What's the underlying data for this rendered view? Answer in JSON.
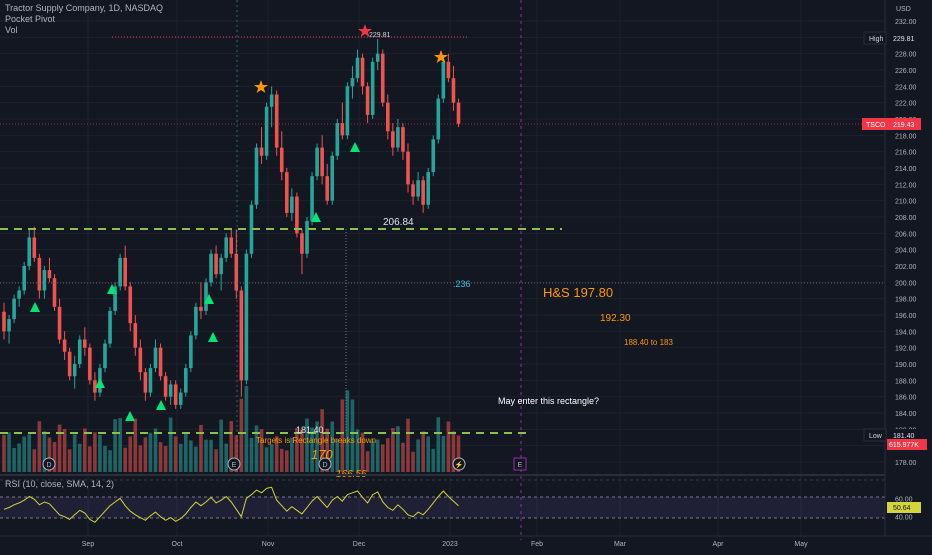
{
  "legend": {
    "title": "Tractor Supply Company, 1D, NASDAQ",
    "indicator_1": "Pocket Pivot",
    "indicator_2": "Vol"
  },
  "price_axis": {
    "currency": "USD",
    "ticks": [
      "232.00",
      "230.00",
      "228.00",
      "226.00",
      "224.00",
      "222.00",
      "220.00",
      "218.00",
      "216.00",
      "214.00",
      "212.00",
      "210.00",
      "208.00",
      "206.00",
      "204.00",
      "202.00",
      "200.00",
      "198.00",
      "196.00",
      "194.00",
      "192.00",
      "190.00",
      "188.00",
      "186.00",
      "184.00",
      "182.00",
      "180.00",
      "178.00"
    ],
    "high_label": "High",
    "high_value": "229.81",
    "ticker_label": "TSCO",
    "ticker_value": "219.43",
    "low_label": "Low",
    "low_value": "181.40",
    "vol_value": "615.977K"
  },
  "rsi_axis": {
    "ticks": [
      "60.00",
      "50.64",
      "40.00"
    ],
    "value": "50.64"
  },
  "rsi_legend": "RSI (10, close, SMA, 14, 2)",
  "time_axis": [
    "Sep",
    "Oct",
    "Nov",
    "Dec",
    "2023",
    "Feb",
    "Mar",
    "Apr",
    "May"
  ],
  "annotations": {
    "peak": "229.81",
    "neckline": "206.84",
    "fib": ".236",
    "hs": "H&S  197.80",
    "t1": "192.30",
    "t2": "188.40 to 183",
    "rect_q": "May enter this rectangle?",
    "low": "181.40",
    "target_text": "Targets is Rectangle breaks down",
    "big_170": "170",
    "cut_number": "166.56"
  },
  "event_badges": [
    "D",
    "E",
    "D",
    "⚡",
    "E"
  ],
  "colors": {
    "up": "#26a69a",
    "down": "#ef5350",
    "neckline": "#8bc34a",
    "ticker_badge": "#f23645",
    "marker": "#00e676",
    "star_orange": "#ff9800",
    "star_red": "#f23645",
    "rsi_line": "#d4d43b",
    "divider_line": "#9c27b0"
  },
  "chart_data": {
    "type": "candlestick",
    "symbol": "TSCO",
    "timeframe": "1D",
    "y_range": [
      177,
      233
    ],
    "levels": {
      "high": 229.81,
      "neckline": 206.84,
      "low": 181.4,
      "last": 219.43
    },
    "targets": {
      "hs": 197.8,
      "t1": 192.3,
      "t2_range": [
        188.4,
        183
      ]
    },
    "candles": [
      [
        196.4,
        197.5,
        193.0,
        194.0
      ],
      [
        194.0,
        196.0,
        192.5,
        195.5
      ],
      [
        195.5,
        198.5,
        195.0,
        198.0
      ],
      [
        198.0,
        199.5,
        197.0,
        199.0
      ],
      [
        199.0,
        202.5,
        198.5,
        202.0
      ],
      [
        202.0,
        206.5,
        201.5,
        205.5
      ],
      [
        205.5,
        206.8,
        202.5,
        203.0
      ],
      [
        203.0,
        203.5,
        198.0,
        199.0
      ],
      [
        199.0,
        202.0,
        198.0,
        201.5
      ],
      [
        201.5,
        203.0,
        200.0,
        200.5
      ],
      [
        200.5,
        201.0,
        196.5,
        197.0
      ],
      [
        197.0,
        198.0,
        192.5,
        193.0
      ],
      [
        193.0,
        194.0,
        190.5,
        191.5
      ],
      [
        191.5,
        192.0,
        188.0,
        188.5
      ],
      [
        188.5,
        191.0,
        187.0,
        190.0
      ],
      [
        190.0,
        193.5,
        189.5,
        193.0
      ],
      [
        193.0,
        194.5,
        191.0,
        192.0
      ],
      [
        192.0,
        192.5,
        187.5,
        188.0
      ],
      [
        188.0,
        189.0,
        185.5,
        186.5
      ],
      [
        186.5,
        190.0,
        186.0,
        189.5
      ],
      [
        189.5,
        193.0,
        189.0,
        192.5
      ],
      [
        192.5,
        197.0,
        192.0,
        196.5
      ],
      [
        196.5,
        200.0,
        196.0,
        199.5
      ],
      [
        199.5,
        203.5,
        199.0,
        203.0
      ],
      [
        203.0,
        204.5,
        199.0,
        199.5
      ],
      [
        199.5,
        200.0,
        194.0,
        195.0
      ],
      [
        195.0,
        196.0,
        191.0,
        192.0
      ],
      [
        192.0,
        193.0,
        188.0,
        189.0
      ],
      [
        189.0,
        189.5,
        185.5,
        186.5
      ],
      [
        186.5,
        190.0,
        186.0,
        189.5
      ],
      [
        189.5,
        193.0,
        189.0,
        192.0
      ],
      [
        192.0,
        192.5,
        188.0,
        188.5
      ],
      [
        188.5,
        189.0,
        185.5,
        186.0
      ],
      [
        186.0,
        188.0,
        185.0,
        187.5
      ],
      [
        187.5,
        188.0,
        184.5,
        185.0
      ],
      [
        185.0,
        187.0,
        184.5,
        186.5
      ],
      [
        186.5,
        190.0,
        186.0,
        189.5
      ],
      [
        189.5,
        194.0,
        189.0,
        193.5
      ],
      [
        193.5,
        197.5,
        193.0,
        197.0
      ],
      [
        197.0,
        200.0,
        195.5,
        196.5
      ],
      [
        196.5,
        200.5,
        196.0,
        200.0
      ],
      [
        200.0,
        204.0,
        199.5,
        203.5
      ],
      [
        203.5,
        204.5,
        200.5,
        201.0
      ],
      [
        201.0,
        203.5,
        199.0,
        203.0
      ],
      [
        203.0,
        206.0,
        202.5,
        205.5
      ],
      [
        205.5,
        206.5,
        203.0,
        203.5
      ],
      [
        203.5,
        206.5,
        198.0,
        199.0
      ],
      [
        199.0,
        199.5,
        186.0,
        188.0
      ],
      [
        188.0,
        204.0,
        187.5,
        203.5
      ],
      [
        203.5,
        210.0,
        203.0,
        209.5
      ],
      [
        209.5,
        217.0,
        209.0,
        216.5
      ],
      [
        216.5,
        219.0,
        214.5,
        215.5
      ],
      [
        215.5,
        222.0,
        215.0,
        221.5
      ],
      [
        221.5,
        224.0,
        219.0,
        223.0
      ],
      [
        223.0,
        223.5,
        215.5,
        216.5
      ],
      [
        216.5,
        218.5,
        212.5,
        213.5
      ],
      [
        213.5,
        214.0,
        208.0,
        208.5
      ],
      [
        208.5,
        211.5,
        207.5,
        210.5
      ],
      [
        210.5,
        211.0,
        205.5,
        206.0
      ],
      [
        206.0,
        206.5,
        201.0,
        203.5
      ],
      [
        203.5,
        208.0,
        203.0,
        207.5
      ],
      [
        207.5,
        213.5,
        207.0,
        213.0
      ],
      [
        213.0,
        217.0,
        212.5,
        216.5
      ],
      [
        216.5,
        218.0,
        212.0,
        213.0
      ],
      [
        213.0,
        214.5,
        209.5,
        210.0
      ],
      [
        210.0,
        216.0,
        209.5,
        215.5
      ],
      [
        215.5,
        220.0,
        215.0,
        219.5
      ],
      [
        219.5,
        222.0,
        217.5,
        218.0
      ],
      [
        218.0,
        224.5,
        217.5,
        224.0
      ],
      [
        224.0,
        226.5,
        222.5,
        225.0
      ],
      [
        225.0,
        228.5,
        224.5,
        227.5
      ],
      [
        227.5,
        228.0,
        223.0,
        224.0
      ],
      [
        224.0,
        224.5,
        219.5,
        220.5
      ],
      [
        220.5,
        227.5,
        220.0,
        227.0
      ],
      [
        227.0,
        229.8,
        226.0,
        228.0
      ],
      [
        228.0,
        228.5,
        221.5,
        222.0
      ],
      [
        222.0,
        223.0,
        217.5,
        218.5
      ],
      [
        218.5,
        219.5,
        215.5,
        216.5
      ],
      [
        216.5,
        220.0,
        216.0,
        219.0
      ],
      [
        219.0,
        219.5,
        215.0,
        216.0
      ],
      [
        216.0,
        217.0,
        211.0,
        212.0
      ],
      [
        212.0,
        212.5,
        209.5,
        210.5
      ],
      [
        210.5,
        213.5,
        210.0,
        212.5
      ],
      [
        212.5,
        213.0,
        208.5,
        209.5
      ],
      [
        209.5,
        214.0,
        209.0,
        213.5
      ],
      [
        213.5,
        218.0,
        213.0,
        217.5
      ],
      [
        217.5,
        223.0,
        217.0,
        222.5
      ],
      [
        222.5,
        227.5,
        222.0,
        227.0
      ],
      [
        227.0,
        228.0,
        224.5,
        225.0
      ],
      [
        225.0,
        226.5,
        221.0,
        222.0
      ],
      [
        222.0,
        222.5,
        219.0,
        219.43
      ]
    ],
    "rsi_range": [
      20,
      80
    ],
    "rsi": [
      48,
      50,
      53,
      55,
      58,
      62,
      59,
      53,
      56,
      54,
      48,
      42,
      40,
      37,
      42,
      47,
      44,
      37,
      34,
      40,
      46,
      52,
      56,
      60,
      52,
      46,
      42,
      39,
      36,
      41,
      45,
      40,
      36,
      39,
      35,
      38,
      43,
      50,
      56,
      52,
      56,
      61,
      55,
      58,
      62,
      56,
      48,
      40,
      60,
      64,
      69,
      66,
      71,
      72,
      58,
      52,
      46,
      51,
      47,
      43,
      50,
      57,
      62,
      56,
      50,
      58,
      62,
      57,
      64,
      66,
      68,
      61,
      55,
      64,
      67,
      56,
      50,
      47,
      53,
      48,
      42,
      40,
      45,
      42,
      48,
      55,
      62,
      68,
      62,
      57,
      52
    ]
  }
}
